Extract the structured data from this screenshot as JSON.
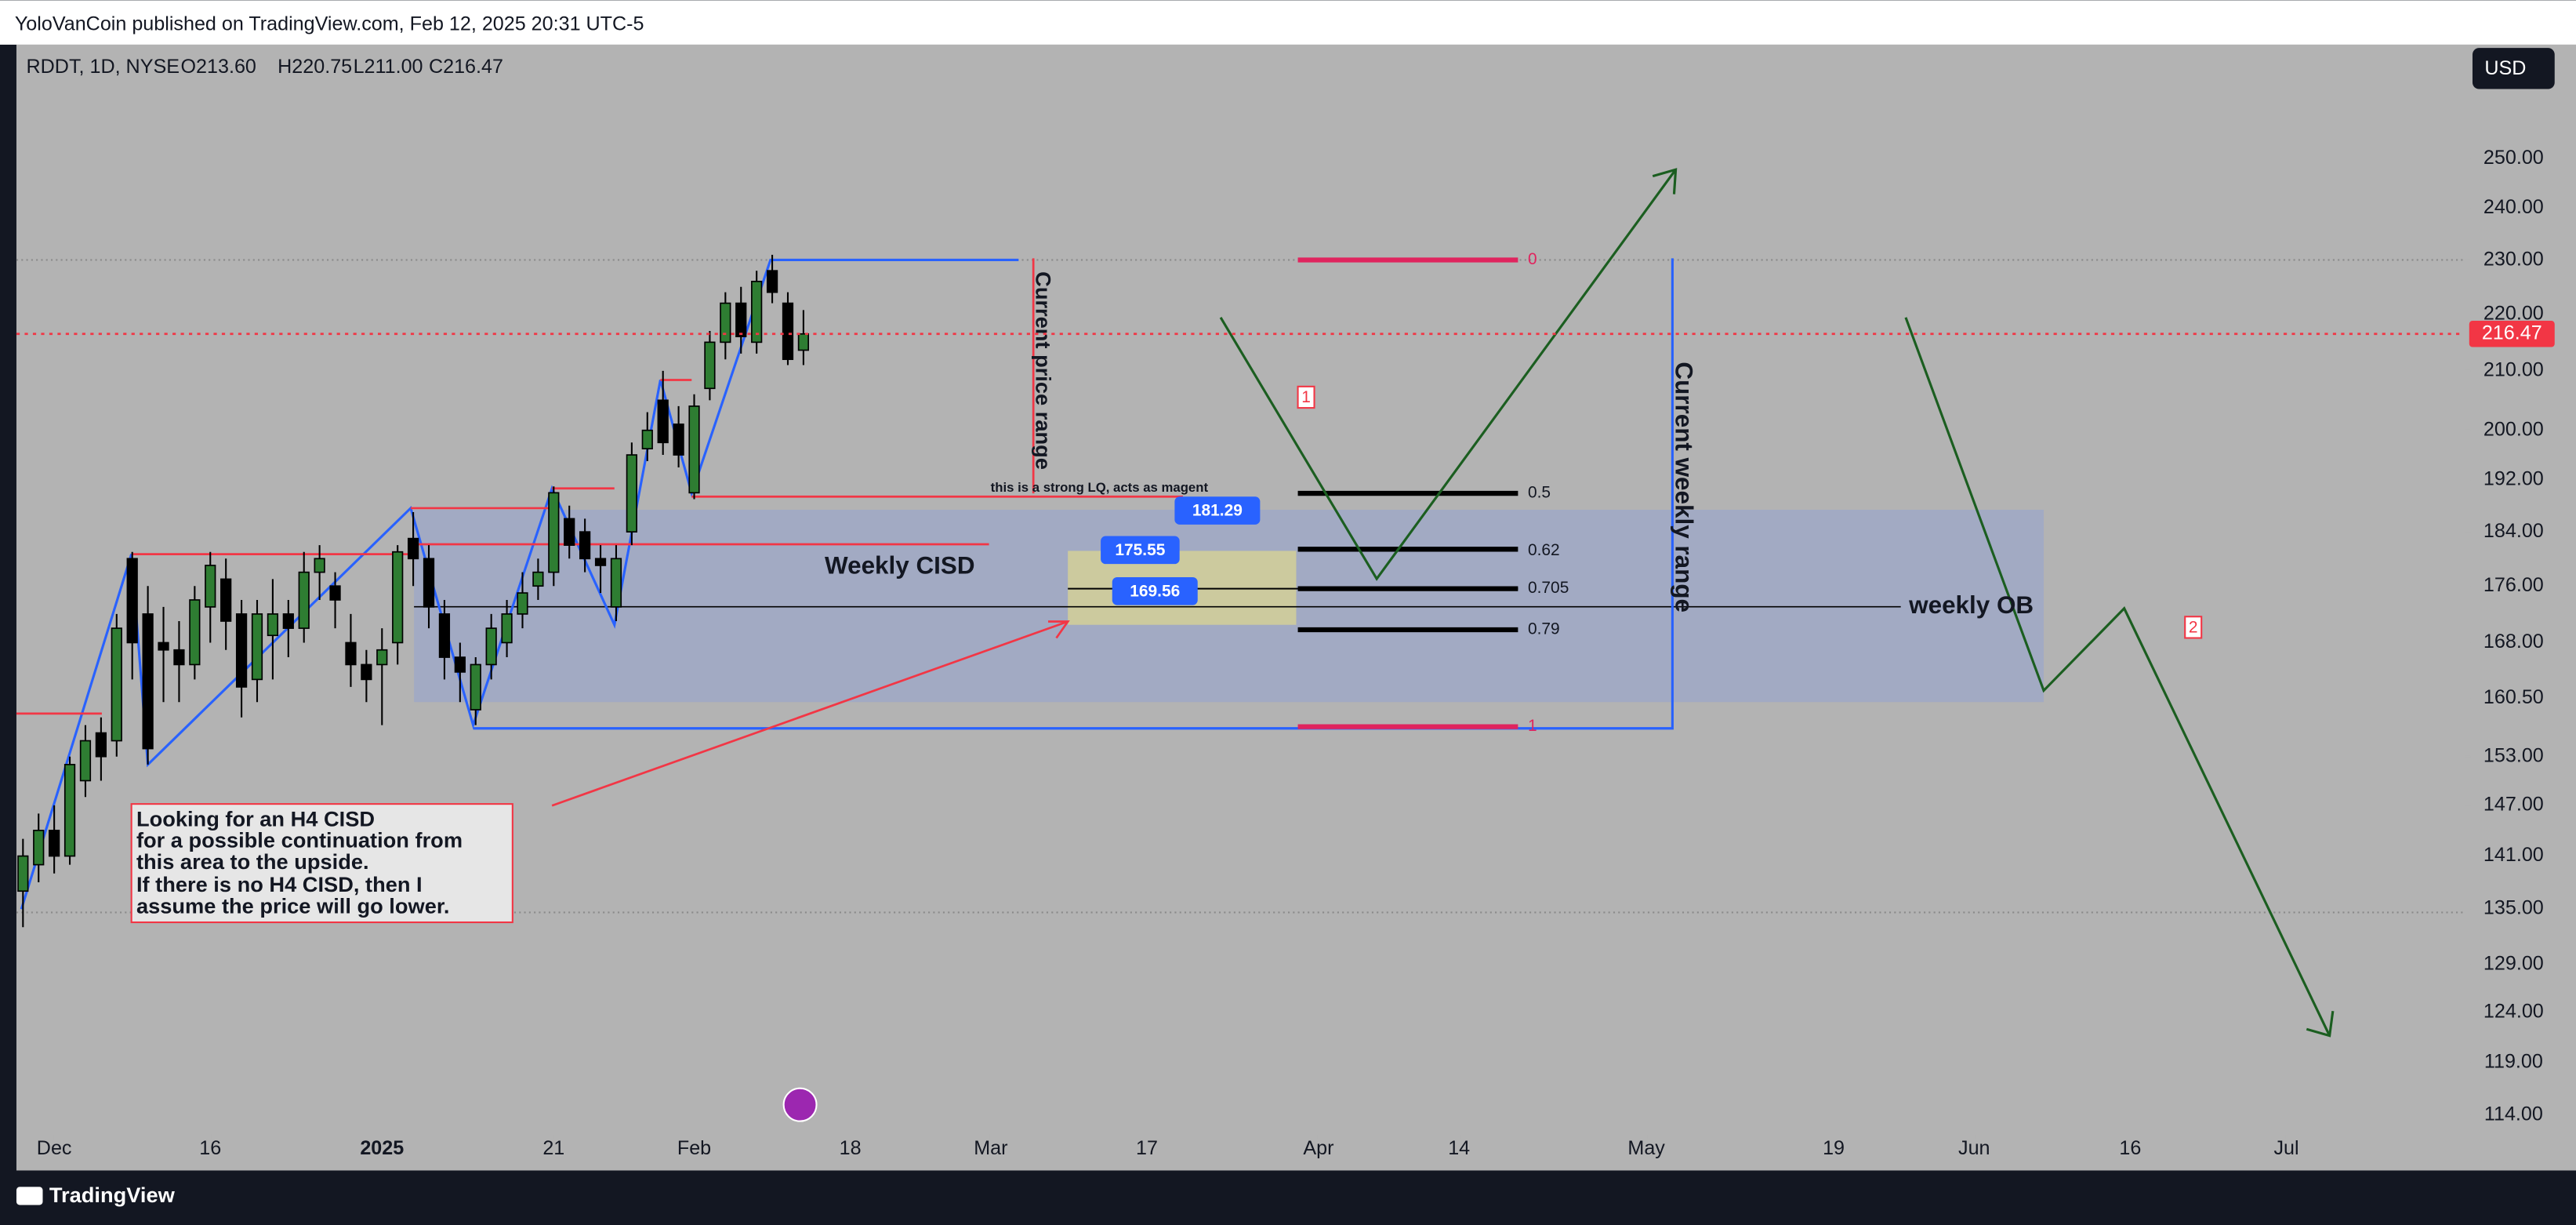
{
  "header": {
    "publisher": "YoloVanCoin published on TradingView.com, Feb 12, 2025 20:31 UTC-5",
    "footer": "TradingView",
    "currency": "USD"
  },
  "chart_data": {
    "type": "candlestick",
    "symbol": "RDDT, 1D, NYSE",
    "ohlc_labels": [
      "O213.60",
      "H220.75",
      "L211.00",
      "C216.47"
    ],
    "x": [
      -2,
      -1,
      0,
      1,
      2,
      3,
      4,
      5,
      6,
      7,
      8,
      9,
      10,
      11,
      12,
      13,
      14,
      15,
      16,
      17,
      18,
      19,
      20,
      21,
      22,
      23,
      24,
      25,
      26,
      27,
      28,
      29,
      30,
      31,
      32,
      33,
      34,
      35,
      36,
      37,
      38,
      39,
      40,
      41,
      42,
      43,
      44,
      45,
      46,
      47,
      48
    ],
    "open": [
      137,
      140,
      144,
      141,
      150,
      156,
      155,
      180,
      172,
      168,
      167,
      165,
      173,
      177,
      172,
      163,
      169,
      172,
      170,
      178,
      176,
      168,
      165,
      165,
      168,
      183,
      180,
      172,
      166,
      159,
      165,
      168,
      172,
      176,
      178,
      186,
      184,
      180,
      173,
      184,
      197,
      205,
      201,
      190,
      207,
      215,
      222,
      215,
      228,
      222,
      213.6
    ],
    "high": [
      143,
      146,
      147,
      153,
      157,
      158,
      172,
      181,
      176,
      173,
      171,
      176,
      181,
      180,
      174,
      174,
      177,
      174,
      181,
      182,
      178,
      172,
      167,
      170,
      182,
      187,
      182,
      174,
      168,
      166,
      172,
      174,
      178,
      180,
      191,
      188,
      186,
      182,
      182,
      198,
      203,
      210,
      204,
      206,
      217,
      224,
      225,
      228,
      231,
      224,
      220.75
    ],
    "low": [
      133,
      138,
      139,
      140,
      148,
      150,
      153,
      163,
      152,
      160,
      160,
      163,
      168,
      167,
      158,
      160,
      163,
      166,
      168,
      174,
      170,
      162,
      160,
      157,
      165,
      176,
      170,
      163,
      160,
      157,
      163,
      166,
      170,
      174,
      176,
      180,
      178,
      175,
      171,
      182,
      195,
      196,
      194,
      189,
      205,
      212,
      213,
      213,
      222,
      211,
      211
    ],
    "close": [
      141,
      144,
      141,
      152,
      155,
      153,
      170,
      168,
      154,
      167,
      165,
      174,
      179,
      171,
      162,
      172,
      172,
      170,
      178,
      180,
      174,
      165,
      163,
      167,
      181,
      180,
      173,
      166,
      164,
      165,
      170,
      172,
      175,
      178,
      190,
      182,
      180,
      179,
      180,
      196,
      200,
      198,
      196,
      204,
      215,
      222,
      216,
      226,
      224,
      212,
      216.47
    ],
    "up_color": "#2e7d32",
    "down_color": "#000000",
    "xlim": [
      -2.42,
      154.4
    ],
    "xticks": [
      {
        "value": 0,
        "label": "Dec"
      },
      {
        "value": 10,
        "label": "16"
      },
      {
        "value": 21,
        "label": "2025"
      },
      {
        "value": 32,
        "label": "21"
      },
      {
        "value": 41,
        "label": "Feb"
      },
      {
        "value": 51,
        "label": "18"
      },
      {
        "value": 60,
        "label": "Mar"
      },
      {
        "value": 70,
        "label": "17"
      },
      {
        "value": 81,
        "label": "Apr"
      },
      {
        "value": 90,
        "label": "14"
      },
      {
        "value": 102,
        "label": "May"
      },
      {
        "value": 114,
        "label": "19"
      },
      {
        "value": 123,
        "label": "Jun"
      },
      {
        "value": 133,
        "label": "16"
      },
      {
        "value": 143,
        "label": "Jul"
      }
    ],
    "ylim": [
      112.2,
      274.5
    ],
    "log_scale": true,
    "yticks": [
      {
        "value": 250,
        "label": "250.00"
      },
      {
        "value": 240,
        "label": "240.00"
      },
      {
        "value": 230,
        "label": "230.00"
      },
      {
        "value": 220,
        "label": "220.00"
      },
      {
        "value": 210,
        "label": "210.00"
      },
      {
        "value": 200,
        "label": "200.00"
      },
      {
        "value": 192,
        "label": "192.00"
      },
      {
        "value": 184,
        "label": "184.00"
      },
      {
        "value": 176,
        "label": "176.00"
      },
      {
        "value": 168,
        "label": "168.00"
      },
      {
        "value": 160.5,
        "label": "160.50"
      },
      {
        "value": 153,
        "label": "153.00"
      },
      {
        "value": 147,
        "label": "147.00"
      },
      {
        "value": 141,
        "label": "141.00"
      },
      {
        "value": 135,
        "label": "135.00"
      },
      {
        "value": 129,
        "label": "129.00"
      },
      {
        "value": 124,
        "label": "124.00"
      },
      {
        "value": 119,
        "label": "119.00"
      },
      {
        "value": 114,
        "label": "114.00"
      }
    ],
    "annotations": {
      "price_range": "Current price range",
      "weekly_range": "Current weekly range",
      "cisd": "Weekly CISD",
      "ob": "weekly OB",
      "lq": "this is a strong LQ, acts as magent",
      "note": [
        "Looking for an H4 CISD",
        "for a possible continuation from",
        "this area to the upside.",
        "If there is no H4 CISD, then I",
        "assume the price will go lower."
      ],
      "markers": [
        "1",
        "2"
      ],
      "fib_levels": [
        0,
        0.5,
        0.62,
        0.705,
        0.79,
        1
      ],
      "price_labels": [
        181.29,
        175.55,
        169.56
      ]
    }
  }
}
